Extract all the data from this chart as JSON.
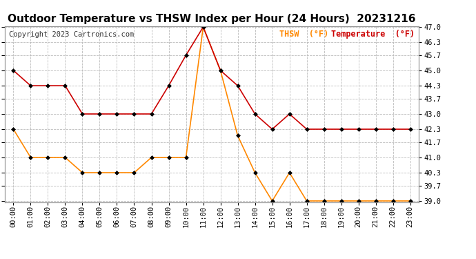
{
  "title": "Outdoor Temperature vs THSW Index per Hour (24 Hours)  20231216",
  "copyright": "Copyright 2023 Cartronics.com",
  "hours": [
    "00:00",
    "01:00",
    "02:00",
    "03:00",
    "04:00",
    "05:00",
    "06:00",
    "07:00",
    "08:00",
    "09:00",
    "10:00",
    "11:00",
    "12:00",
    "13:00",
    "14:00",
    "15:00",
    "16:00",
    "17:00",
    "18:00",
    "19:00",
    "20:00",
    "21:00",
    "22:00",
    "23:00"
  ],
  "temperature": [
    45.0,
    44.3,
    44.3,
    44.3,
    43.0,
    43.0,
    43.0,
    43.0,
    43.0,
    44.3,
    45.7,
    47.0,
    45.0,
    44.3,
    43.0,
    42.3,
    43.0,
    42.3,
    42.3,
    42.3,
    42.3,
    42.3,
    42.3,
    42.3
  ],
  "thsw": [
    42.3,
    41.0,
    41.0,
    41.0,
    40.3,
    40.3,
    40.3,
    40.3,
    41.0,
    41.0,
    41.0,
    47.0,
    45.0,
    42.0,
    40.3,
    39.0,
    40.3,
    39.0,
    39.0,
    39.0,
    39.0,
    39.0,
    39.0,
    39.0
  ],
  "temp_color": "#cc0000",
  "thsw_color": "#ff8800",
  "marker_color": "#000000",
  "bg_color": "#ffffff",
  "grid_color": "#bbbbbb",
  "ylim_min": 38.95,
  "ylim_max": 47.05,
  "yticks": [
    39.0,
    39.7,
    40.3,
    41.0,
    41.7,
    42.3,
    43.0,
    43.7,
    44.3,
    45.0,
    45.7,
    46.3,
    47.0
  ],
  "legend_thsw": "THSW  (°F)",
  "legend_temp": "Temperature  (°F)",
  "title_fontsize": 11,
  "copyright_fontsize": 7.5,
  "legend_fontsize": 8.5,
  "tick_fontsize": 7.5
}
